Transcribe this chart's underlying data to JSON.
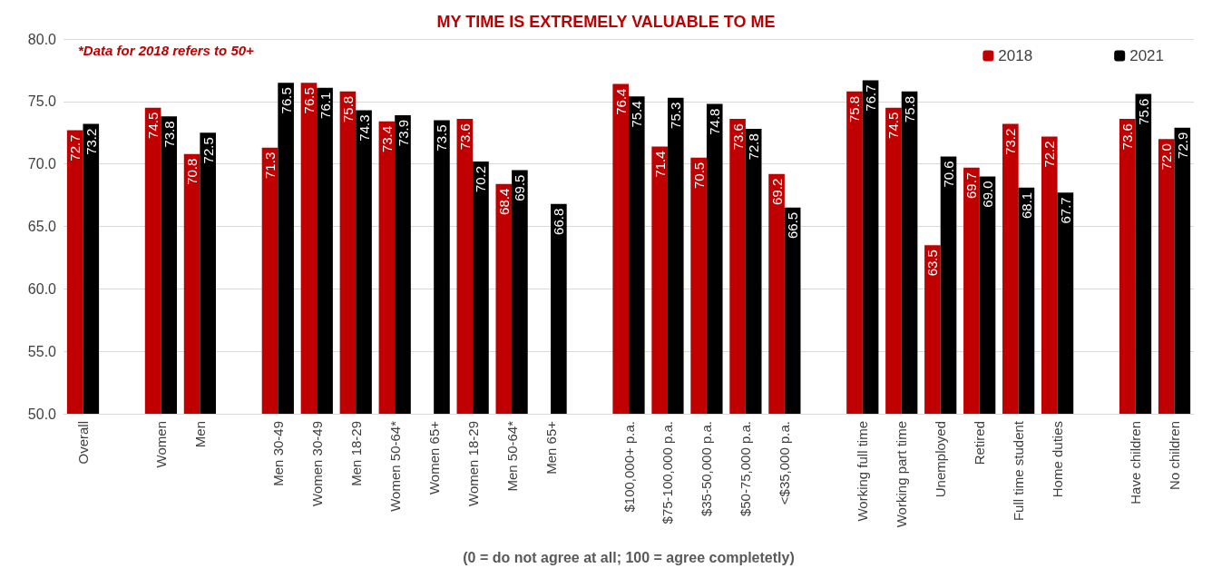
{
  "chart_data": {
    "type": "bar",
    "title": "MY TIME IS EXTREMELY VALUABLE TO ME",
    "xlabel": "(0 = do not agree at all; 100 = agree completetly)",
    "annotations": [
      "*Data for 2018 refers to 50+"
    ],
    "categories": [
      "Overall",
      null,
      "Women",
      "Men",
      null,
      "Men 30-49",
      "Women 30-49",
      "Men 18-29",
      "Women 50-64*",
      "Women 65+",
      "Women 18-29",
      "Men 50-64*",
      "Men 65+",
      null,
      "$100,000+ p.a.",
      "$75-100,000 p.a.",
      "$35-50,000 p.a.",
      "$50-75,000 p.a.",
      "<$35,000 p.a.",
      null,
      "Working full time",
      "Working part time",
      "Unemployed",
      "Retired",
      "Full time student",
      "Home duties",
      null,
      "Have children",
      "No children"
    ],
    "series": [
      {
        "name": "2018",
        "color": "#c00000",
        "values": [
          72.7,
          null,
          74.5,
          70.8,
          null,
          71.3,
          76.5,
          75.8,
          73.4,
          null,
          73.6,
          68.4,
          null,
          null,
          76.4,
          71.4,
          70.5,
          73.6,
          69.2,
          null,
          75.8,
          74.5,
          63.5,
          69.7,
          73.2,
          72.2,
          null,
          73.6,
          72.0
        ],
        "value_labels": [
          "72.7",
          null,
          "74.5",
          "70.8",
          null,
          "71.3",
          "76.5",
          "75.8",
          "73.4",
          null,
          "73.6",
          "68.4",
          null,
          null,
          "76.4",
          "71.4",
          "70.5",
          "73.6",
          "69.2",
          null,
          "75.8",
          "74.5",
          "63.5",
          "69.7",
          "73.2",
          "72.2",
          null,
          "73.6",
          "72.0"
        ]
      },
      {
        "name": "2021",
        "color": "#000000",
        "values": [
          73.2,
          null,
          73.8,
          72.5,
          null,
          76.5,
          76.1,
          74.3,
          73.9,
          73.5,
          70.2,
          69.5,
          66.8,
          null,
          75.4,
          75.3,
          74.8,
          72.8,
          66.5,
          null,
          76.7,
          75.8,
          70.6,
          69.0,
          68.1,
          67.7,
          null,
          75.6,
          72.9
        ],
        "value_labels": [
          "73.2",
          null,
          "73.8",
          "72.5",
          null,
          "76.5",
          "76.1",
          "74.3",
          "73.9",
          "73.5",
          "70.2",
          "69.5",
          "66.8",
          null,
          "75.4",
          "75.3",
          "74.8",
          "72.8",
          "66.5",
          null,
          "76.7",
          "75.8",
          "70.6",
          "69.0",
          "68.1",
          "67.7",
          null,
          "75.6",
          "72.9"
        ]
      }
    ],
    "ylim": [
      50,
      80
    ],
    "yticks": [
      {
        "value": 50,
        "label": "50.0"
      },
      {
        "value": 55,
        "label": "55.0"
      },
      {
        "value": 60,
        "label": "60.0"
      },
      {
        "value": 65,
        "label": "65.0"
      },
      {
        "value": 70,
        "label": "70.0"
      },
      {
        "value": 75,
        "label": "75.0"
      },
      {
        "value": 80,
        "label": "80.0"
      }
    ],
    "grid": "y",
    "legend": "top right"
  }
}
